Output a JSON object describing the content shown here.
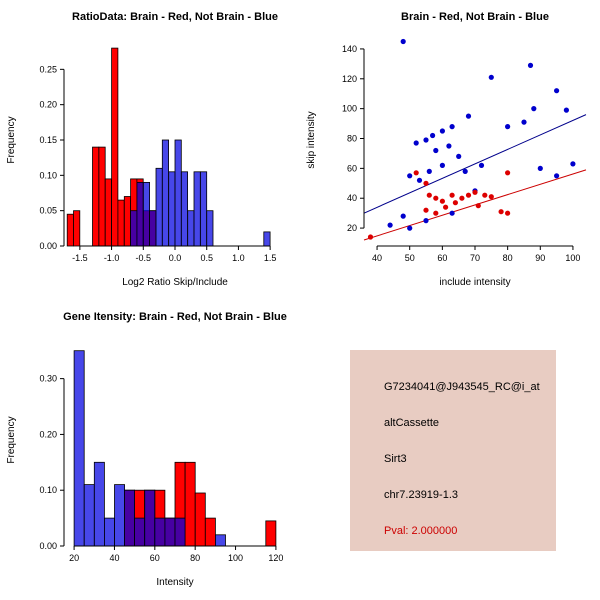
{
  "figure": {
    "background": "#FFFFFF"
  },
  "chart_data": [
    {
      "type": "histogram",
      "title": "RatioData: Brain - Red, Not Brain - Blue",
      "xlabel": "Log2 Ratio Skip/Include",
      "ylabel": "Frequency",
      "xlim": [
        -1.75,
        1.75
      ],
      "ylim": [
        0,
        0.3
      ],
      "xticks": {
        "values": [
          -1.5,
          -1.0,
          -0.5,
          0.0,
          0.5,
          1.0,
          1.5
        ],
        "labels": [
          "-1.5",
          "-1.0",
          "-0.5",
          "0.0",
          "0.5",
          "1.0",
          "1.5"
        ]
      },
      "yticks": {
        "values": [
          0,
          0.05,
          0.1,
          0.15,
          0.2,
          0.25
        ],
        "labels": [
          "0.00",
          "0.05",
          "0.10",
          "0.15",
          "0.20",
          "0.25"
        ]
      },
      "series": [
        {
          "name": "brain-red",
          "color": "#FF0000",
          "fill_opacity": 1,
          "bin_width": 0.1,
          "bins": [
            [
              -1.7,
              0.045
            ],
            [
              -1.6,
              0.05
            ],
            [
              -1.3,
              0.14
            ],
            [
              -1.2,
              0.14
            ],
            [
              -1.1,
              0.095
            ],
            [
              -1.0,
              0.28
            ],
            [
              -0.9,
              0.065
            ],
            [
              -0.8,
              0.07
            ],
            [
              -0.7,
              0.095
            ],
            [
              -0.6,
              0.095
            ],
            [
              -0.5,
              0.05
            ],
            [
              -0.4,
              0.05
            ]
          ]
        },
        {
          "name": "notbrain-blue",
          "color": "#0000E0",
          "fill_opacity": 0.72,
          "bin_width": 0.1,
          "bins": [
            [
              -0.7,
              0.05
            ],
            [
              -0.6,
              0.09
            ],
            [
              -0.5,
              0.09
            ],
            [
              -0.4,
              0.05
            ],
            [
              -0.3,
              0.11
            ],
            [
              -0.2,
              0.15
            ],
            [
              -0.1,
              0.105
            ],
            [
              0.0,
              0.15
            ],
            [
              0.1,
              0.105
            ],
            [
              0.2,
              0.05
            ],
            [
              0.3,
              0.105
            ],
            [
              0.4,
              0.105
            ],
            [
              0.5,
              0.05
            ],
            [
              1.4,
              0.02
            ]
          ]
        }
      ]
    },
    {
      "type": "scatter",
      "title": "Brain - Red, Not Brain - Blue",
      "xlabel": "include intensity",
      "ylabel": "skip intensity",
      "xlim": [
        36,
        104
      ],
      "ylim": [
        8,
        150
      ],
      "xticks": {
        "values": [
          40,
          50,
          60,
          70,
          80,
          90,
          100
        ],
        "labels": [
          "40",
          "50",
          "60",
          "70",
          "80",
          "90",
          "100"
        ]
      },
      "yticks": {
        "values": [
          20,
          40,
          60,
          80,
          100,
          120,
          140
        ],
        "labels": [
          "20",
          "40",
          "60",
          "80",
          "100",
          "120",
          "140"
        ]
      },
      "fit_lines": [
        {
          "name": "notbrain-fit",
          "color": "#00008B",
          "x1": 36,
          "y1": 30,
          "x2": 104,
          "y2": 96
        },
        {
          "name": "brain-fit",
          "color": "#CC0000",
          "x1": 36,
          "y1": 12,
          "x2": 104,
          "y2": 59
        }
      ],
      "series": [
        {
          "name": "notbrain-blue",
          "color": "#0000CD",
          "points": [
            [
              48,
              145
            ],
            [
              87,
              129
            ],
            [
              75,
              121
            ],
            [
              95,
              112
            ],
            [
              98,
              99
            ],
            [
              88,
              100
            ],
            [
              80,
              88
            ],
            [
              85,
              91
            ],
            [
              68,
              95
            ],
            [
              63,
              88
            ],
            [
              60,
              85
            ],
            [
              57,
              82
            ],
            [
              55,
              79
            ],
            [
              52,
              77
            ],
            [
              58,
              72
            ],
            [
              62,
              75
            ],
            [
              65,
              68
            ],
            [
              60,
              62
            ],
            [
              56,
              58
            ],
            [
              50,
              55
            ],
            [
              53,
              52
            ],
            [
              90,
              60
            ],
            [
              100,
              63
            ],
            [
              95,
              55
            ],
            [
              70,
              45
            ],
            [
              48,
              28
            ],
            [
              44,
              22
            ],
            [
              50,
              20
            ],
            [
              55,
              25
            ],
            [
              63,
              30
            ],
            [
              67,
              58
            ],
            [
              72,
              62
            ]
          ]
        },
        {
          "name": "brain-red",
          "color": "#DD0000",
          "points": [
            [
              38,
              14
            ],
            [
              52,
              57
            ],
            [
              55,
              50
            ],
            [
              56,
              42
            ],
            [
              58,
              40
            ],
            [
              60,
              38
            ],
            [
              61,
              34
            ],
            [
              63,
              42
            ],
            [
              64,
              37
            ],
            [
              66,
              40
            ],
            [
              68,
              42
            ],
            [
              70,
              44
            ],
            [
              71,
              35
            ],
            [
              73,
              42
            ],
            [
              75,
              41
            ],
            [
              78,
              31
            ],
            [
              80,
              30
            ],
            [
              58,
              30
            ],
            [
              55,
              32
            ],
            [
              80,
              57
            ]
          ]
        }
      ]
    },
    {
      "type": "histogram",
      "title": "Gene Itensity: Brain - Red, Not Brain - Blue",
      "xlabel": "Intensity",
      "ylabel": "Frequency",
      "xlim": [
        15,
        125
      ],
      "ylim": [
        0,
        0.38
      ],
      "xticks": {
        "values": [
          20,
          40,
          60,
          80,
          100,
          120
        ],
        "labels": [
          "20",
          "40",
          "60",
          "80",
          "100",
          "120"
        ]
      },
      "yticks": {
        "values": [
          0,
          0.1,
          0.2,
          0.3
        ],
        "labels": [
          "0.00",
          "0.10",
          "0.20",
          "0.30"
        ]
      },
      "series": [
        {
          "name": "brain-red",
          "color": "#FF0000",
          "fill_opacity": 1,
          "bin_width": 5,
          "bins": [
            [
              45,
              0.1
            ],
            [
              50,
              0.1
            ],
            [
              55,
              0.1
            ],
            [
              60,
              0.1
            ],
            [
              65,
              0.05
            ],
            [
              70,
              0.15
            ],
            [
              75,
              0.15
            ],
            [
              80,
              0.095
            ],
            [
              85,
              0.05
            ],
            [
              115,
              0.045
            ]
          ]
        },
        {
          "name": "notbrain-blue",
          "color": "#0000E0",
          "fill_opacity": 0.72,
          "bin_width": 5,
          "bins": [
            [
              20,
              0.35
            ],
            [
              25,
              0.11
            ],
            [
              30,
              0.15
            ],
            [
              35,
              0.05
            ],
            [
              40,
              0.11
            ],
            [
              45,
              0.1
            ],
            [
              50,
              0.05
            ],
            [
              55,
              0.1
            ],
            [
              60,
              0.05
            ],
            [
              65,
              0.05
            ],
            [
              70,
              0.05
            ],
            [
              90,
              0.02
            ]
          ]
        }
      ]
    }
  ],
  "info_panel": {
    "background": "#E8CCC2",
    "lines": [
      {
        "text": "G7234041@J943545_RC@i_at",
        "color": "#000000"
      },
      {
        "text": "altCassette",
        "color": "#000000"
      },
      {
        "text": "Sirt3",
        "color": "#000000"
      },
      {
        "text": "chr7.23919-1.3",
        "color": "#000000"
      },
      {
        "text": "Pval: 2.000000",
        "color": "#CC0000"
      }
    ]
  }
}
